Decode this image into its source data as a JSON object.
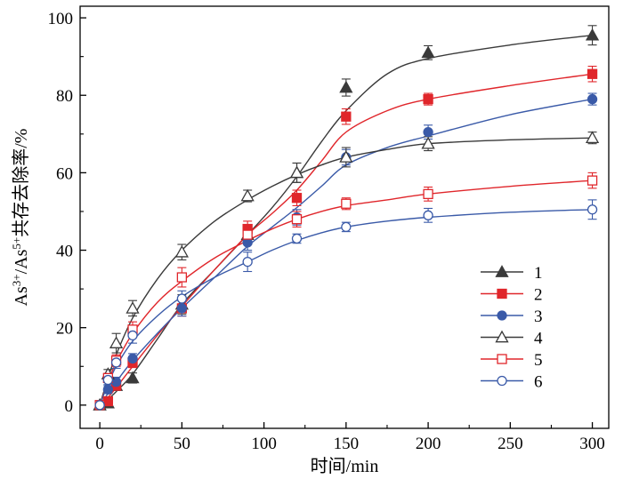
{
  "colors": {
    "series1": "#3a3a3a",
    "series2": "#e0262b",
    "series3": "#3a5aa8",
    "series4": "#3a3a3a",
    "series5": "#e0262b",
    "series6": "#3a5aa8",
    "axis": "#000000"
  },
  "chart_data": {
    "type": "scatter",
    "title": "",
    "xlabel": "时间/min",
    "ylabel_parts": [
      "As",
      "3+",
      "/As",
      "5+",
      "共存去除率/%"
    ],
    "xlim": [
      -12,
      310
    ],
    "ylim": [
      -6,
      103
    ],
    "xticks": [
      0,
      50,
      100,
      150,
      200,
      250,
      300
    ],
    "yticks": [
      0,
      20,
      40,
      60,
      80,
      100
    ],
    "grid": false,
    "legend_position": "center-right",
    "series": [
      {
        "name": "1",
        "marker": "triangle-filled",
        "x": [
          0,
          5,
          10,
          20,
          50,
          90,
          120,
          150,
          200,
          300
        ],
        "y": [
          0,
          0.5,
          5,
          7,
          26,
          44,
          60,
          82,
          91,
          95.5
        ],
        "err": [
          0.6,
          1,
          1.2,
          1.3,
          2.5,
          2.5,
          2.5,
          2.2,
          1.8,
          2.5
        ]
      },
      {
        "name": "2",
        "marker": "square-filled",
        "x": [
          0,
          5,
          10,
          20,
          50,
          90,
          120,
          150,
          200,
          300
        ],
        "y": [
          0,
          1,
          5,
          11,
          25,
          45.5,
          53.5,
          74.5,
          79,
          85.5
        ],
        "err": [
          0.6,
          1,
          1.2,
          1.3,
          2,
          2,
          2,
          2,
          1.5,
          2
        ]
      },
      {
        "name": "3",
        "marker": "circle-filled",
        "x": [
          0,
          5,
          10,
          20,
          50,
          90,
          120,
          150,
          200,
          300
        ],
        "y": [
          0,
          4,
          6,
          12,
          25,
          42,
          48.5,
          64,
          70.5,
          79
        ],
        "err": [
          0.6,
          1,
          1.2,
          1.3,
          2,
          2,
          2,
          2,
          1.8,
          1.5
        ]
      },
      {
        "name": "4",
        "marker": "triangle-open",
        "x": [
          0,
          5,
          10,
          20,
          50,
          90,
          120,
          150,
          200,
          300
        ],
        "y": [
          0,
          8,
          16,
          25,
          39.5,
          54,
          60,
          64,
          67.5,
          69
        ],
        "err": [
          0.6,
          1.2,
          2.5,
          2,
          2,
          1.5,
          2.5,
          2.5,
          1.8,
          1.5
        ]
      },
      {
        "name": "5",
        "marker": "square-open",
        "x": [
          0,
          5,
          10,
          20,
          50,
          90,
          120,
          150,
          200,
          300
        ],
        "y": [
          0,
          7,
          11.5,
          19.5,
          33,
          44,
          48,
          52,
          54.5,
          58
        ],
        "err": [
          0.6,
          1.2,
          1.5,
          2,
          2.5,
          2,
          2,
          1.5,
          1.8,
          2
        ]
      },
      {
        "name": "6",
        "marker": "circle-open",
        "x": [
          0,
          5,
          10,
          20,
          50,
          90,
          120,
          150,
          200,
          300
        ],
        "y": [
          0,
          6.5,
          11,
          18,
          27.5,
          37,
          43,
          46,
          49,
          50.5
        ],
        "err": [
          0.6,
          1.2,
          1.5,
          2,
          2,
          2.5,
          1.2,
          1.2,
          1.8,
          2.5
        ]
      }
    ],
    "fit_curves": {
      "1": {
        "x": [
          0,
          5,
          10,
          20,
          35,
          50,
          70,
          90,
          105,
          120,
          135,
          150,
          175,
          200,
          250,
          300
        ],
        "y": [
          0,
          1.5,
          3.5,
          8,
          17,
          26,
          35,
          44,
          51,
          59,
          68,
          76,
          85.5,
          89.5,
          93,
          95.5
        ]
      },
      "2": {
        "x": [
          0,
          5,
          10,
          20,
          35,
          50,
          70,
          90,
          105,
          120,
          135,
          150,
          175,
          200,
          250,
          300
        ],
        "y": [
          0,
          2,
          4.5,
          10,
          18,
          25.5,
          35,
          44,
          49.5,
          55.5,
          63,
          70.5,
          76,
          79,
          82.5,
          85.5
        ]
      },
      "3": {
        "x": [
          0,
          5,
          10,
          20,
          35,
          50,
          70,
          90,
          105,
          120,
          135,
          150,
          175,
          200,
          250,
          300
        ],
        "y": [
          0,
          3,
          6,
          11.5,
          18.5,
          25,
          33,
          41,
          46,
          51,
          56.5,
          62,
          66.5,
          69.5,
          75,
          79
        ]
      },
      "4": {
        "x": [
          0,
          5,
          10,
          20,
          35,
          50,
          70,
          90,
          105,
          120,
          135,
          150,
          175,
          200,
          250,
          300
        ],
        "y": [
          0,
          7,
          13,
          22.5,
          32.5,
          40,
          47.5,
          53,
          56.5,
          59.5,
          62,
          64,
          66,
          67.5,
          68.5,
          69
        ]
      },
      "5": {
        "x": [
          0,
          5,
          10,
          20,
          35,
          50,
          70,
          90,
          105,
          120,
          135,
          150,
          175,
          200,
          250,
          300
        ],
        "y": [
          0,
          6,
          11,
          18.5,
          26.5,
          32,
          38,
          42.5,
          45.5,
          48,
          50,
          51.5,
          53,
          54.5,
          56.5,
          58
        ]
      },
      "6": {
        "x": [
          0,
          5,
          10,
          20,
          35,
          50,
          70,
          90,
          105,
          120,
          135,
          150,
          175,
          200,
          250,
          300
        ],
        "y": [
          0,
          5.5,
          10,
          16.5,
          23,
          28,
          33,
          37,
          40,
          42.5,
          44.5,
          46,
          47.5,
          48.5,
          49.8,
          50.5
        ]
      }
    }
  }
}
